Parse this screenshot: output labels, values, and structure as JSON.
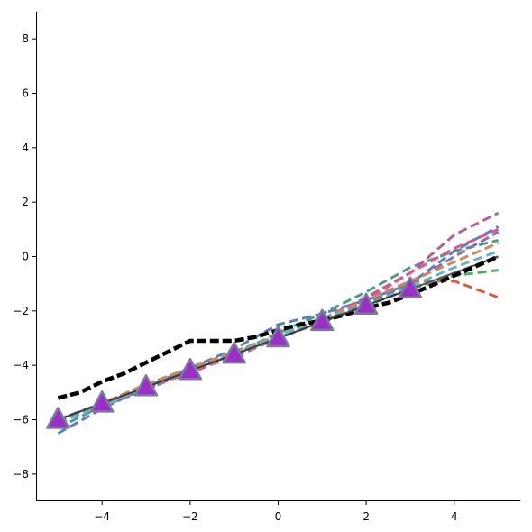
{
  "chart_data": {
    "type": "line",
    "title": "",
    "xlabel": "",
    "ylabel": "",
    "xlim": [
      -5.5,
      5.5
    ],
    "ylim": [
      -9,
      9
    ],
    "x_ticks": [
      -4,
      -2,
      0,
      2,
      4
    ],
    "y_ticks": [
      -8,
      -6,
      -4,
      -2,
      0,
      2,
      4,
      6,
      8
    ],
    "x_tick_labels": [
      "−4",
      "−2",
      "0",
      "2",
      "4"
    ],
    "y_tick_labels": [
      "−8",
      "−6",
      "−4",
      "−2",
      "0",
      "2",
      "4",
      "6",
      "8"
    ],
    "grid": false,
    "legend": "none",
    "dashed_series": [
      {
        "color": "#d1603d",
        "x": [
          -5,
          -4,
          -3,
          -2,
          -1,
          0,
          1,
          2,
          3,
          4,
          5
        ],
        "y": [
          -6.0,
          -5.4,
          -4.8,
          -4.2,
          -3.6,
          -3.0,
          -2.4,
          -1.6,
          -0.9,
          -0.9,
          -1.5
        ]
      },
      {
        "color": "#55a868",
        "x": [
          -5,
          -4,
          -3,
          -2,
          -1,
          0,
          1,
          2,
          3,
          4,
          5
        ],
        "y": [
          -6.1,
          -5.4,
          -4.7,
          -4.1,
          -3.5,
          -2.9,
          -2.3,
          -1.7,
          -1.2,
          -0.7,
          -0.5
        ]
      },
      {
        "color": "#4c9f80",
        "x": [
          -5,
          -4,
          -3,
          -2,
          -1,
          0,
          1,
          2,
          3,
          4,
          5
        ],
        "y": [
          -6.3,
          -5.5,
          -4.9,
          -4.2,
          -3.6,
          -2.8,
          -2.1,
          -1.3,
          -0.4,
          0.2,
          0.6
        ]
      },
      {
        "color": "#5a7fc2",
        "x": [
          -5,
          -4,
          -3,
          -2,
          -1,
          0,
          1,
          2,
          3,
          4,
          5
        ],
        "y": [
          -6.5,
          -5.6,
          -4.8,
          -4.1,
          -3.4,
          -2.5,
          -2.1,
          -1.6,
          -1.0,
          0.2,
          1.1
        ]
      },
      {
        "color": "#b3609c",
        "x": [
          -5,
          -4,
          -3,
          -2,
          -1,
          0,
          1,
          2,
          3,
          4,
          5
        ],
        "y": [
          -6.1,
          -5.5,
          -4.9,
          -4.2,
          -3.7,
          -3.0,
          -2.3,
          -1.5,
          -0.6,
          0.8,
          1.6
        ]
      },
      {
        "color": "#dd5599",
        "x": [
          -5,
          -4,
          -3,
          -2,
          -1,
          0,
          1,
          2,
          3,
          4,
          5
        ],
        "y": [
          -6.0,
          -5.4,
          -4.8,
          -4.3,
          -3.6,
          -2.9,
          -2.3,
          -1.6,
          -0.6,
          0.3,
          1.0
        ]
      },
      {
        "color": "#8172b2",
        "x": [
          -5,
          -4,
          -3,
          -2,
          -1,
          0,
          1,
          2,
          3,
          4,
          5
        ],
        "y": [
          -6.0,
          -5.4,
          -4.8,
          -4.1,
          -3.5,
          -2.9,
          -2.3,
          -1.7,
          -1.0,
          0.0,
          0.9
        ]
      },
      {
        "color": "#c98c5c",
        "x": [
          -5,
          -4,
          -3,
          -2,
          -1,
          0,
          1,
          2,
          3,
          4,
          5
        ],
        "y": [
          -6.0,
          -5.4,
          -4.7,
          -4.1,
          -3.5,
          -2.9,
          -2.3,
          -1.6,
          -0.9,
          -0.2,
          0.5
        ]
      },
      {
        "color": "#64b5cd",
        "x": [
          -5,
          -4,
          -3,
          -2,
          -1,
          0,
          1,
          2,
          3,
          4,
          5
        ],
        "y": [
          -6.1,
          -5.5,
          -4.8,
          -4.2,
          -3.6,
          -2.9,
          -2.3,
          -1.8,
          -1.1,
          -0.4,
          0.2
        ]
      },
      {
        "color": "#8c8c8c",
        "x": [
          -5,
          -4,
          -3,
          -2,
          -1,
          0,
          1,
          2,
          3,
          4,
          5
        ],
        "y": [
          -6.0,
          -5.4,
          -4.8,
          -4.2,
          -3.6,
          -3.0,
          -2.4,
          -1.8,
          -1.2,
          -0.6,
          0.0
        ]
      }
    ],
    "black_series": {
      "color": "#000000",
      "x": [
        -5,
        -4.5,
        -4,
        -3.5,
        -3,
        -2.5,
        -2,
        -1.5,
        -1,
        -0.5,
        0,
        0.5,
        1,
        1.5,
        2,
        2.5,
        3,
        3.5,
        4,
        4.5,
        5
      ],
      "y": [
        -5.2,
        -5.0,
        -4.6,
        -4.3,
        -3.9,
        -3.5,
        -3.1,
        -3.1,
        -3.1,
        -2.95,
        -2.7,
        -2.5,
        -2.35,
        -2.15,
        -1.9,
        -1.7,
        -1.4,
        -1.05,
        -0.7,
        -0.35,
        0.0
      ]
    },
    "marker_series": {
      "line_color": "#3b3b3b",
      "marker_fill": "#9b30c8",
      "marker_edge": "#7a7a9a",
      "x": [
        -5,
        -4,
        -3,
        -2,
        -1,
        0,
        1,
        2,
        3
      ],
      "y": [
        -6.0,
        -5.4,
        -4.8,
        -4.2,
        -3.6,
        -3.0,
        -2.4,
        -1.8,
        -1.2
      ]
    },
    "extra_line": {
      "color": "#555555",
      "x": [
        3,
        4,
        5
      ],
      "y": [
        -1.2,
        -0.6,
        0.0
      ]
    }
  }
}
